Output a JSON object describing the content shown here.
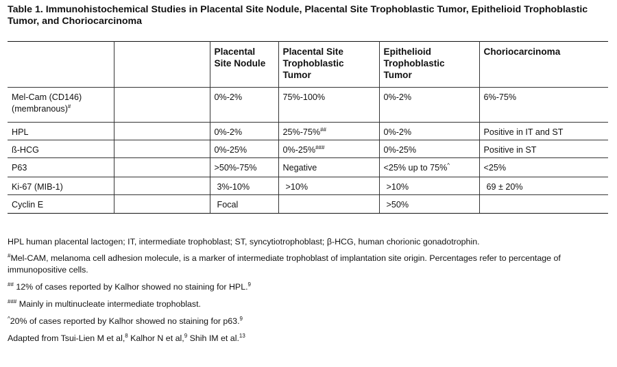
{
  "title": "Table 1. Immunohistochemical Studies in Placental Site Nodule, Placental Site Trophoblastic Tumor, Epithelioid Trophoblastic Tumor, and Choriocarcinoma",
  "table": {
    "headers": [
      "",
      "",
      "Placental Site Nodule",
      "Placental Site Trophoblastic Tumor",
      "Epithelioid Trophoblastic Tumor",
      "Choriocarcinoma"
    ],
    "rows": [
      {
        "marker": "Mel-Cam (CD146) (membranous)",
        "marker_sup": "#",
        "psn": "0%-2%",
        "psn_sup": "",
        "pstt": "75%-100%",
        "pstt_sup": "",
        "ett": "0%-2%",
        "ett_sup": "",
        "cc": "6%-75%"
      },
      {
        "marker": "HPL",
        "marker_sup": "",
        "psn": "0%-2%",
        "psn_sup": "",
        "pstt": "25%-75%",
        "pstt_sup": "##",
        "ett": "0%-2%",
        "ett_sup": "",
        "cc": "Positive in IT and ST"
      },
      {
        "marker": "ß-HCG",
        "marker_sup": "",
        "psn": "0%-25%",
        "psn_sup": "",
        "pstt": "0%-25%",
        "pstt_sup": "###",
        "ett": "0%-25%",
        "ett_sup": "",
        "cc": "Positive in ST"
      },
      {
        "marker": "P63",
        "marker_sup": "",
        "psn": ">50%-75%",
        "psn_sup": "",
        "pstt": "Negative",
        "pstt_sup": "",
        "ett": "<25% up to 75%",
        "ett_sup": "^",
        "cc": "<25%"
      },
      {
        "marker": "Ki-67 (MIB-1)",
        "marker_sup": "",
        "psn": "3%-10%",
        "psn_sup": "",
        "pstt": ">10%",
        "pstt_sup": "",
        "ett": ">10%",
        "ett_sup": "",
        "cc": "69 ± 20%"
      },
      {
        "marker": "Cyclin E",
        "marker_sup": "",
        "psn": "Focal",
        "psn_sup": "",
        "pstt": "",
        "pstt_sup": "",
        "ett": ">50%",
        "ett_sup": "",
        "cc": ""
      }
    ]
  },
  "footnotes": {
    "abbrev": "HPL human placental lactogen; IT, intermediate trophoblast; ST, syncytiotrophoblast; β-HCG, human chorionic gonadotrophin.",
    "hash_sym": "#",
    "hash": "Mel-CAM, melanoma cell adhesion molecule, is a marker of intermediate trophoblast of implantation site origin. Percentages refer to percentage of immunopositive cells.",
    "dhash_sym": "##",
    "dhash": " 12% of cases reported by Kalhor showed no staining for HPL.",
    "dhash_ref": "9",
    "thash_sym": "###",
    "thash": " Mainly in multinucleate intermediate trophoblast.",
    "caret_sym": "^",
    "caret": "20% of cases reported by Kalhor showed no staining for p63.",
    "caret_ref": "9",
    "adapted_a": "Adapted from Tsui-Lien M et al,",
    "adapted_ref1": "8",
    "adapted_b": " Kalhor N et al,",
    "adapted_ref2": "9",
    "adapted_c": " Shih IM et al.",
    "adapted_ref3": "13"
  }
}
